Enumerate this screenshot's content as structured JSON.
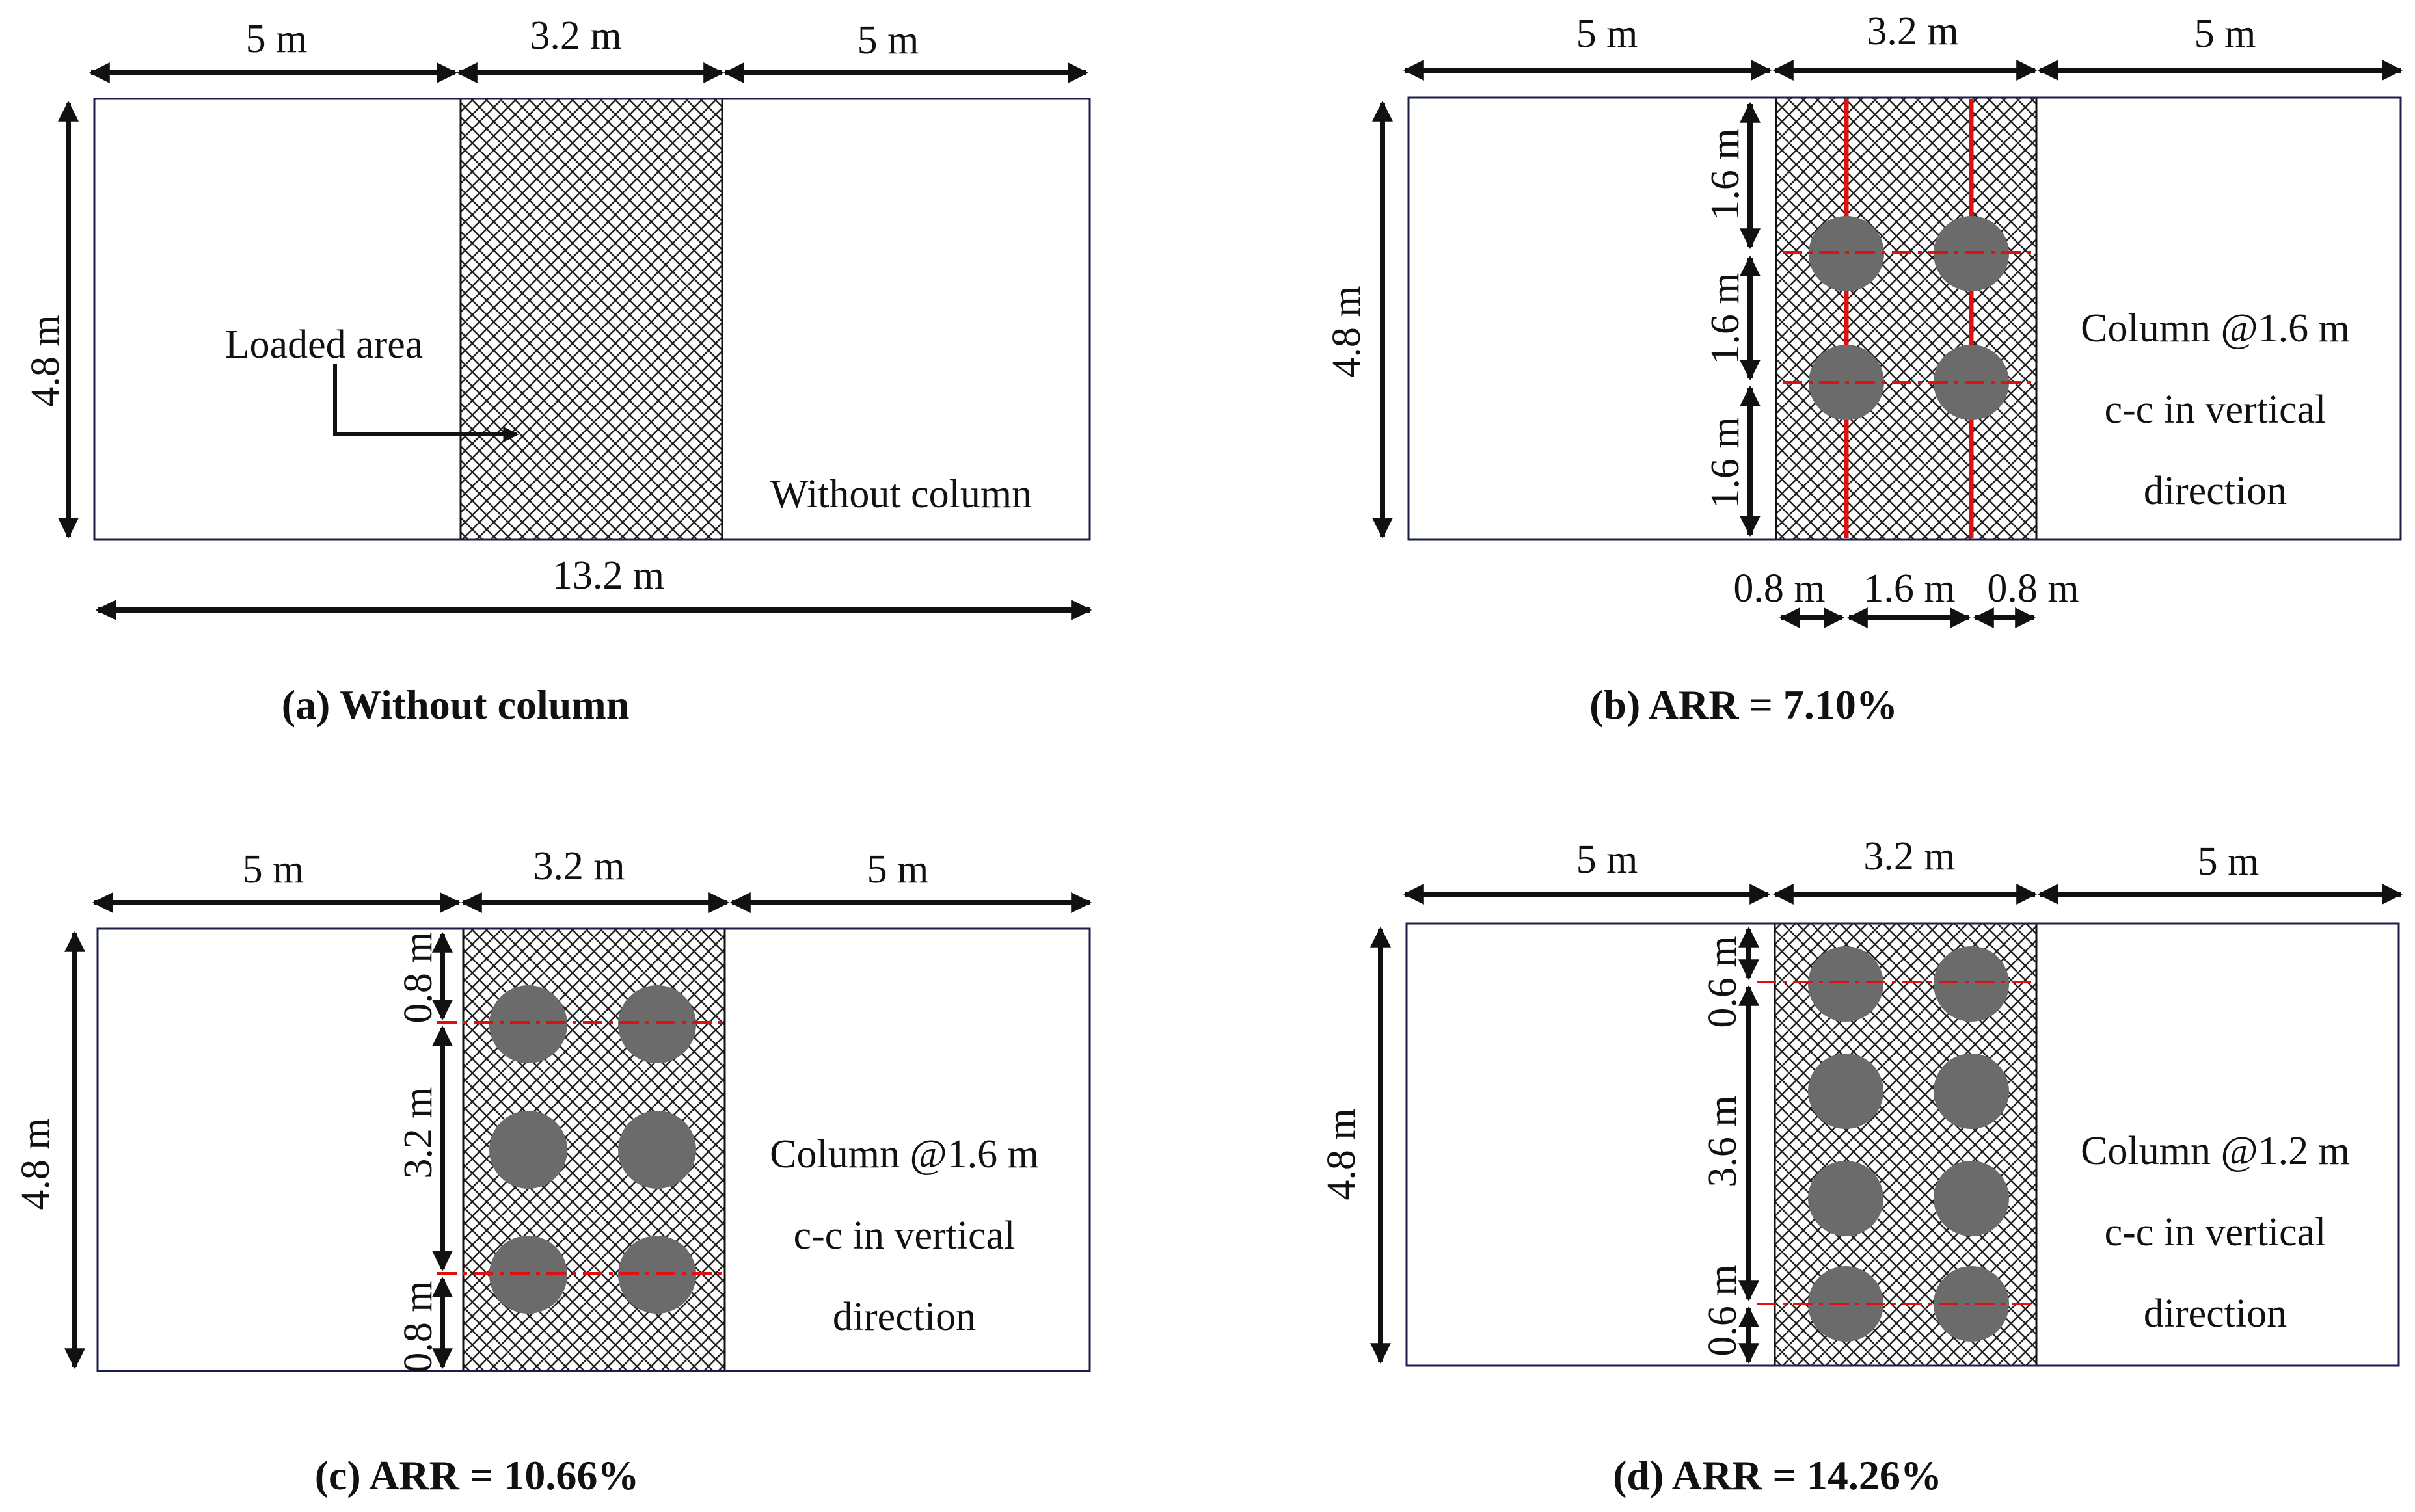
{
  "colors": {
    "line": "#111111",
    "hatch": "#222222",
    "column": "#6b6b6b",
    "red": "#e01010",
    "border": "#1a1f4a"
  },
  "panels": {
    "a": {
      "caption": "(a) Without column",
      "top_dims": [
        "5 m",
        "3.2 m",
        "5 m"
      ],
      "height_dim": "4.8 m",
      "total_dim": "13.2 m",
      "loaded_label": "Loaded area",
      "note_lines": [
        "Without column"
      ]
    },
    "b": {
      "caption": "(b) ARR = 7.10%",
      "top_dims": [
        "5 m",
        "3.2 m",
        "5 m"
      ],
      "height_dim": "4.8 m",
      "vert_dims": [
        "1.6 m",
        "1.6 m",
        "1.6 m"
      ],
      "bottom_dims": [
        "0.8 m",
        "1.6 m",
        "0.8 m"
      ],
      "note_lines": [
        "Column @1.6 m",
        "c-c in vertical",
        "direction"
      ]
    },
    "c": {
      "caption": "(c) ARR = 10.66%",
      "top_dims": [
        "5 m",
        "3.2 m",
        "5 m"
      ],
      "height_dim": "4.8 m",
      "vert_dims": [
        "0.8 m",
        "3.2 m",
        "0.8 m"
      ],
      "note_lines": [
        "Column @1.6 m",
        "c-c in vertical",
        "direction"
      ]
    },
    "d": {
      "caption": "(d) ARR = 14.26%",
      "top_dims": [
        "5 m",
        "3.2 m",
        "5 m"
      ],
      "height_dim": "4.8 m",
      "vert_dims": [
        "0.6 m",
        "3.6 m",
        "0.6 m"
      ],
      "note_lines": [
        "Column @1.2 m",
        "c-c in vertical",
        "direction"
      ]
    }
  }
}
